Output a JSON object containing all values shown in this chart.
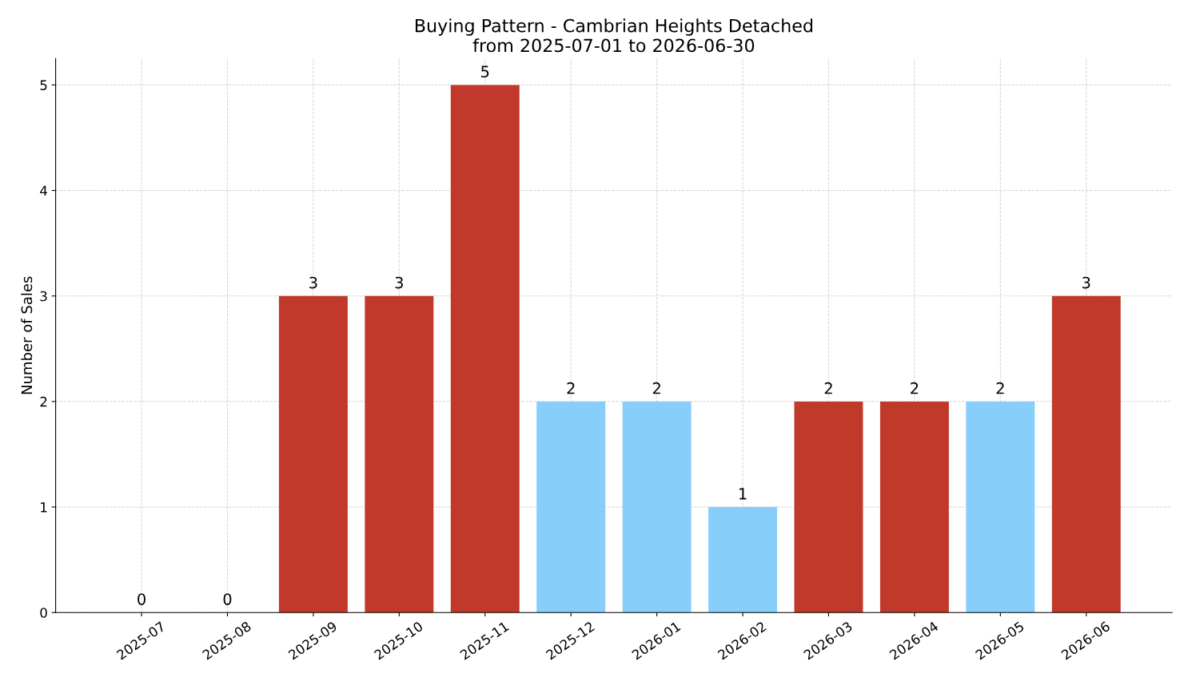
{
  "chart_data": {
    "type": "bar",
    "title": "Buying Pattern - Cambrian Heights Detached\nfrom 2025-07-01 to 2026-06-30",
    "ylabel": "Number of Sales",
    "categories": [
      "2025-07",
      "2025-08",
      "2025-09",
      "2025-10",
      "2025-11",
      "2025-12",
      "2026-01",
      "2026-02",
      "2026-03",
      "2026-04",
      "2026-05",
      "2026-06"
    ],
    "values": [
      0,
      0,
      3,
      3,
      5,
      2,
      2,
      1,
      2,
      2,
      2,
      3
    ],
    "colors": [
      "#c0392b",
      "#c0392b",
      "#c0392b",
      "#c0392b",
      "#c0392b",
      "#87cefa",
      "#87cefa",
      "#87cefa",
      "#c0392b",
      "#c0392b",
      "#87cefa",
      "#c0392b"
    ],
    "ylim": [
      0,
      5.25
    ],
    "yticks": [
      0,
      1,
      2,
      3,
      4,
      5
    ],
    "grid": true,
    "data_labels": true
  }
}
